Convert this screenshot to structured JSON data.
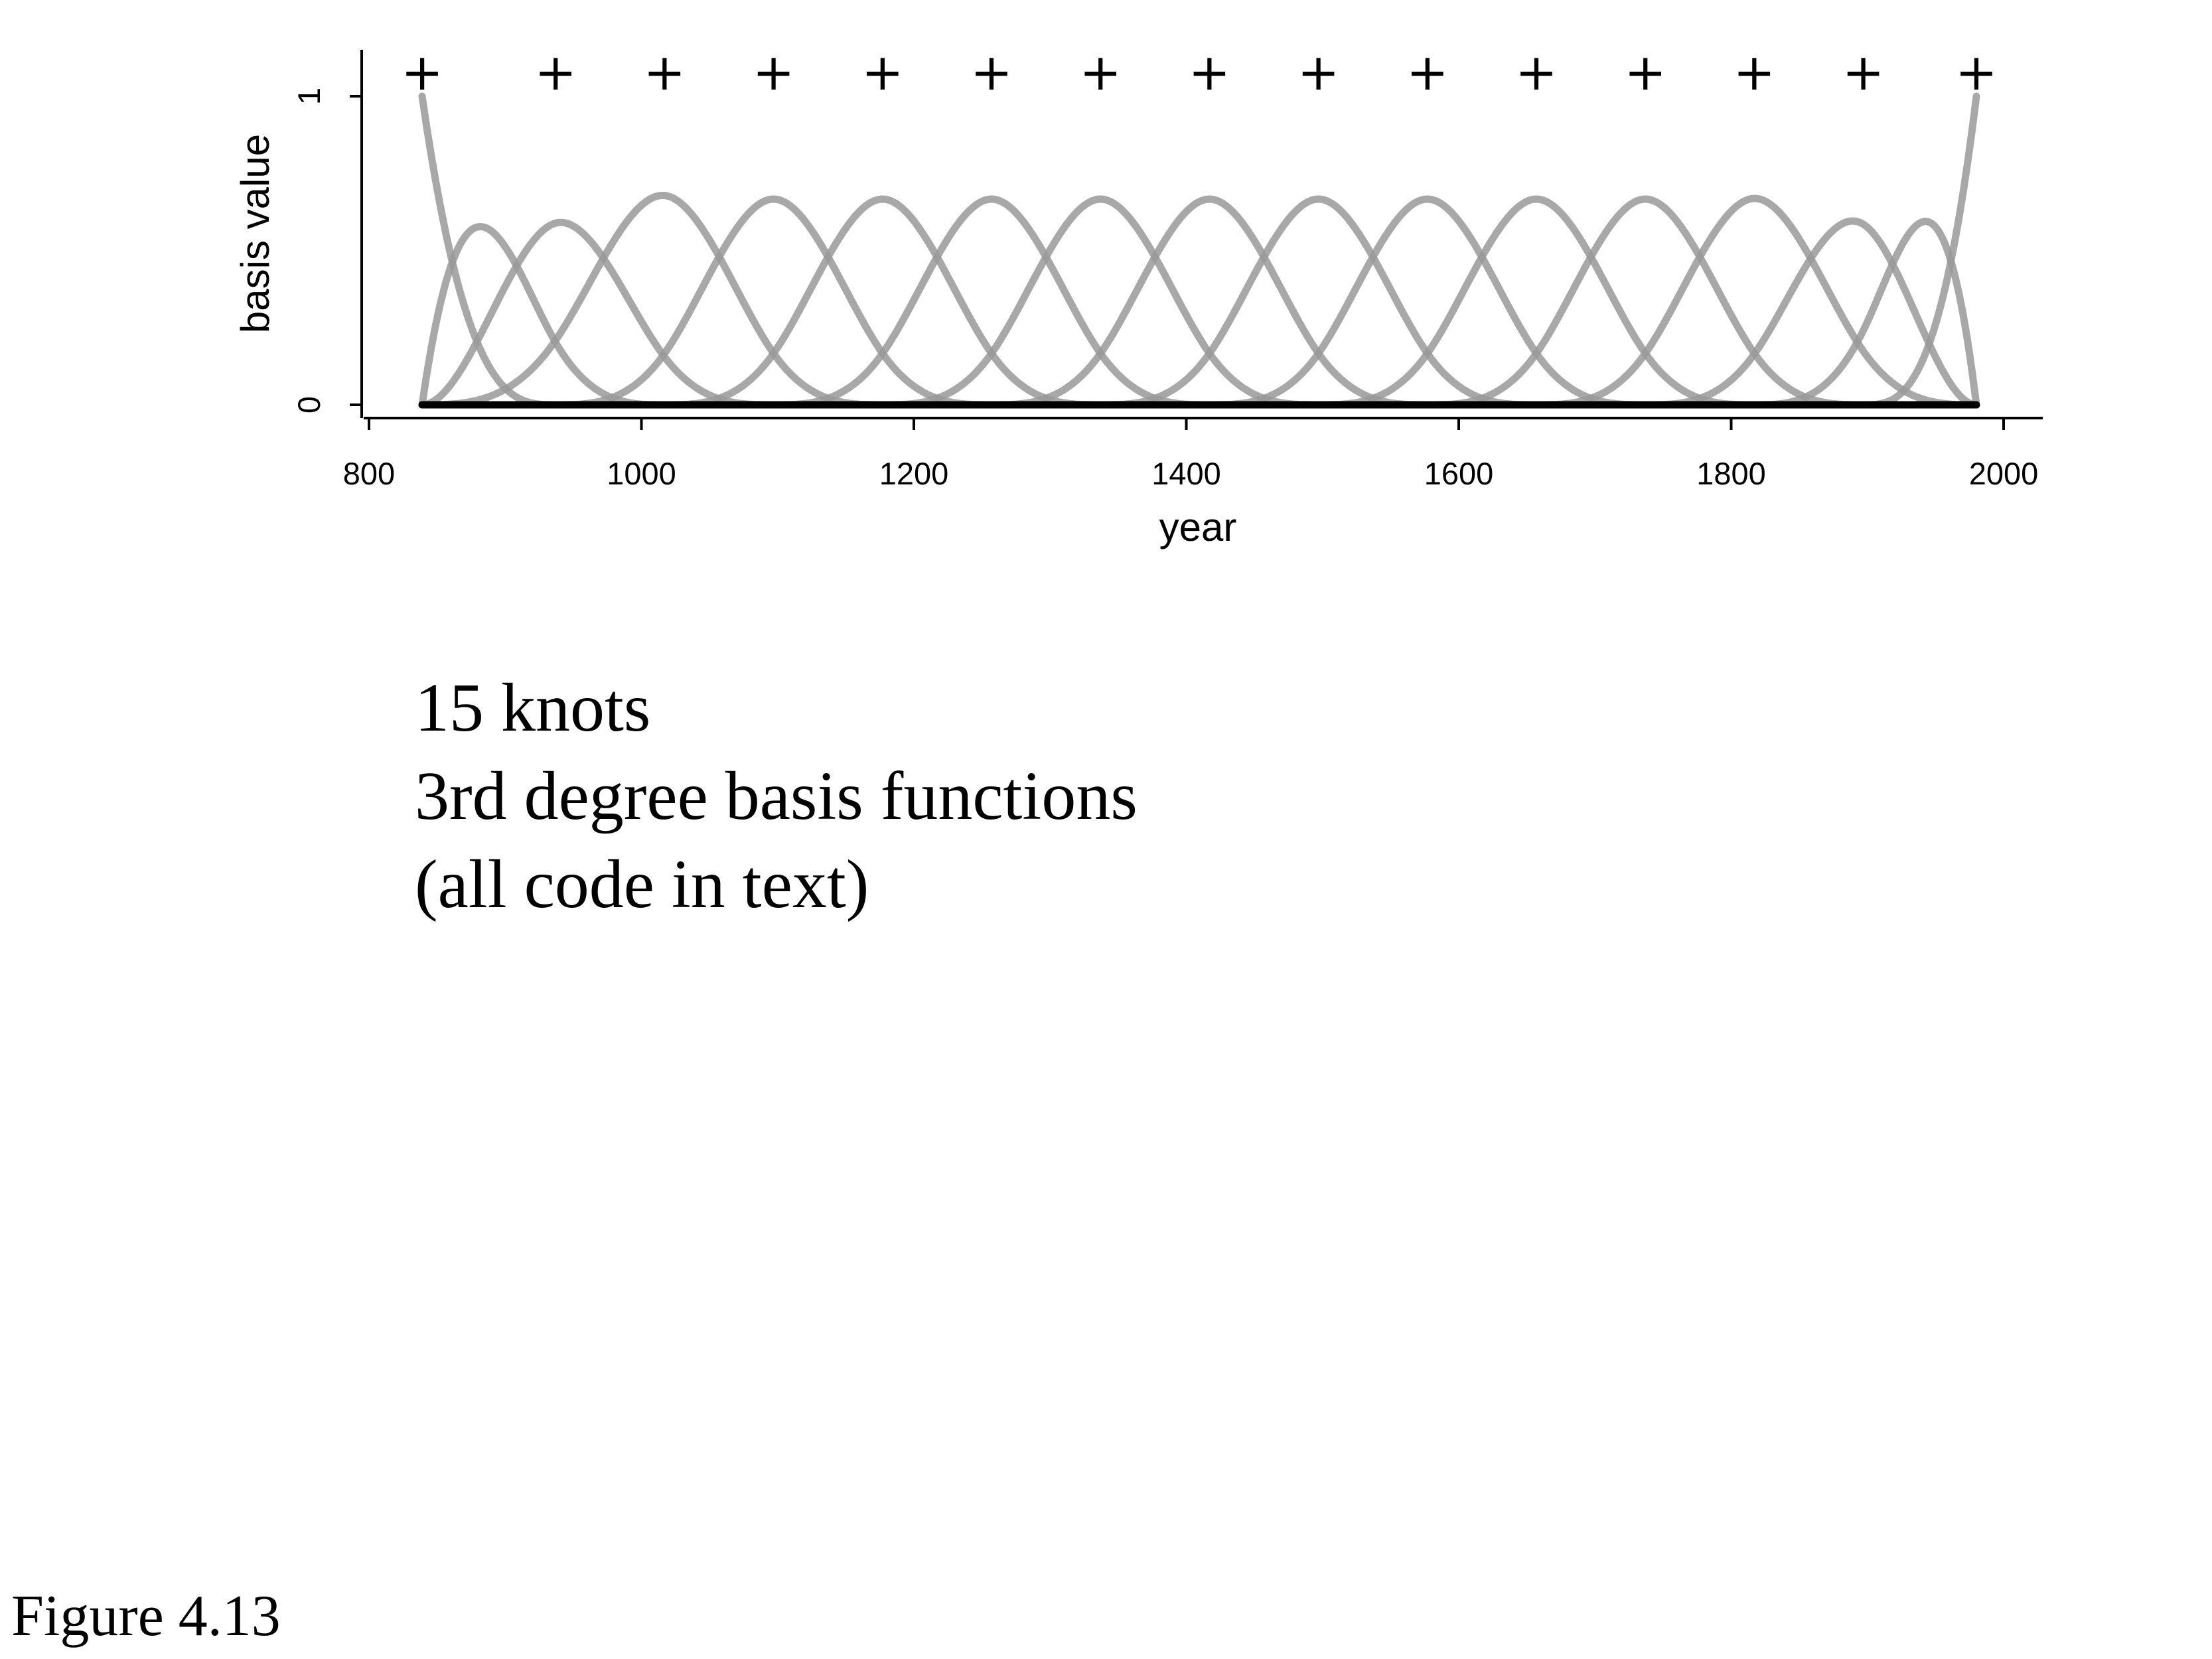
{
  "chart_data": {
    "type": "line",
    "title": "",
    "xlabel": "year",
    "ylabel": "basis value",
    "xlim": [
      800,
      2000
    ],
    "ylim": [
      0,
      1
    ],
    "x_ticks": [
      800,
      1000,
      1200,
      1400,
      1600,
      1800,
      2000
    ],
    "y_ticks": [
      0,
      1
    ],
    "grid": false,
    "legend": "none",
    "degree": 3,
    "knot_marker": "+",
    "knots": [
      839,
      937,
      1017,
      1097,
      1177,
      1257,
      1337,
      1417,
      1497,
      1577,
      1657,
      1737,
      1817,
      1897,
      1980
    ],
    "basis_color": "#999999",
    "baseline_color": "#000000"
  },
  "caption": {
    "lines": [
      "15 knots",
      "3rd degree basis functions",
      "(all code in text)"
    ]
  },
  "figure_label": "Figure 4.13"
}
